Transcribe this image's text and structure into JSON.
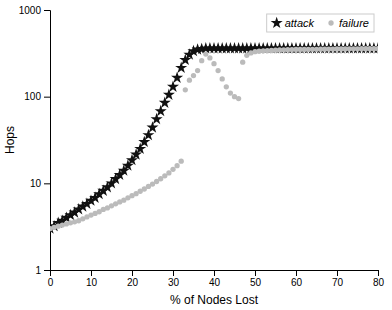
{
  "chart_data": {
    "type": "scatter",
    "x": [
      0,
      1,
      2,
      3,
      4,
      5,
      6,
      7,
      8,
      9,
      10,
      11,
      12,
      13,
      14,
      15,
      16,
      17,
      18,
      19,
      20,
      21,
      22,
      23,
      24,
      25,
      26,
      27,
      28,
      29,
      30,
      31,
      32,
      33,
      34,
      35,
      36,
      37,
      38,
      39,
      40,
      41,
      42,
      43,
      44,
      45,
      46,
      47,
      48,
      49,
      50,
      51,
      52,
      53,
      54,
      55,
      56,
      57,
      58,
      59,
      60,
      61,
      62,
      63,
      64,
      65,
      66,
      67,
      68,
      69,
      70,
      71,
      72,
      73,
      74,
      75,
      76,
      77,
      78,
      79,
      80
    ],
    "series": [
      {
        "name": "attack",
        "color": "#111111",
        "marker": "star",
        "values": [
          3.0,
          3.2,
          3.5,
          3.7,
          4.0,
          4.3,
          4.6,
          5.0,
          5.4,
          5.8,
          6.3,
          6.8,
          7.5,
          8.2,
          9.0,
          10.0,
          11.2,
          12.5,
          14.0,
          16.0,
          18.5,
          21.5,
          25.0,
          30.0,
          36.0,
          44.0,
          55.0,
          68.0,
          85.0,
          105.0,
          130.0,
          165.0,
          215.0,
          265.0,
          305.0,
          335.0,
          350.0,
          355.0,
          360.0,
          360.0,
          360.0,
          360.0,
          360.0,
          360.0,
          360.0,
          360.0,
          360.0,
          360.0,
          360.0,
          360.0,
          360.0,
          360.0,
          360.0,
          360.0,
          360.0,
          360.0,
          360.0,
          360.0,
          360.0,
          360.0,
          360.0,
          360.0,
          360.0,
          360.0,
          360.0,
          360.0,
          360.0,
          360.0,
          360.0,
          360.0,
          360.0,
          360.0,
          360.0,
          360.0,
          360.0,
          360.0,
          360.0,
          360.0,
          360.0,
          360.0,
          360.0
        ]
      },
      {
        "name": "failure",
        "color": "#bbbbbb",
        "marker": "circle",
        "values": [
          3.0,
          3.1,
          3.2,
          3.3,
          3.4,
          3.5,
          3.6,
          3.7,
          3.9,
          4.1,
          4.3,
          4.5,
          4.7,
          5.0,
          5.2,
          5.5,
          5.8,
          6.1,
          6.4,
          6.8,
          7.2,
          7.6,
          8.1,
          8.6,
          9.2,
          9.8,
          10.5,
          11.3,
          12.2,
          13.2,
          14.5,
          16.0,
          18.0,
          120.0,
          155.0,
          175.0,
          200.0,
          260.0,
          310.0,
          280.0,
          240.0,
          200.0,
          160.0,
          130.0,
          110.0,
          100.0,
          95.0,
          250.0,
          300.0,
          320.0,
          330.0,
          335.0,
          338.0,
          340.0,
          342.0,
          344.0,
          346.0,
          347.0,
          348.0,
          349.0,
          350.0,
          350.0,
          351.0,
          351.0,
          352.0,
          352.0,
          353.0,
          353.0,
          354.0,
          354.0,
          355.0,
          355.0,
          355.0,
          356.0,
          356.0,
          356.0,
          357.0,
          357.0,
          357.0,
          358.0,
          358.0
        ]
      }
    ],
    "xlabel": "% of Nodes Lost",
    "ylabel": "Hops",
    "xlim": [
      0,
      80
    ],
    "ylim": [
      1,
      1000
    ],
    "xticks": [
      0,
      10,
      20,
      30,
      40,
      50,
      60,
      70,
      80
    ],
    "yticks": [
      1,
      10,
      100,
      1000
    ],
    "log": "y",
    "grid": false,
    "legend": "upper right"
  }
}
